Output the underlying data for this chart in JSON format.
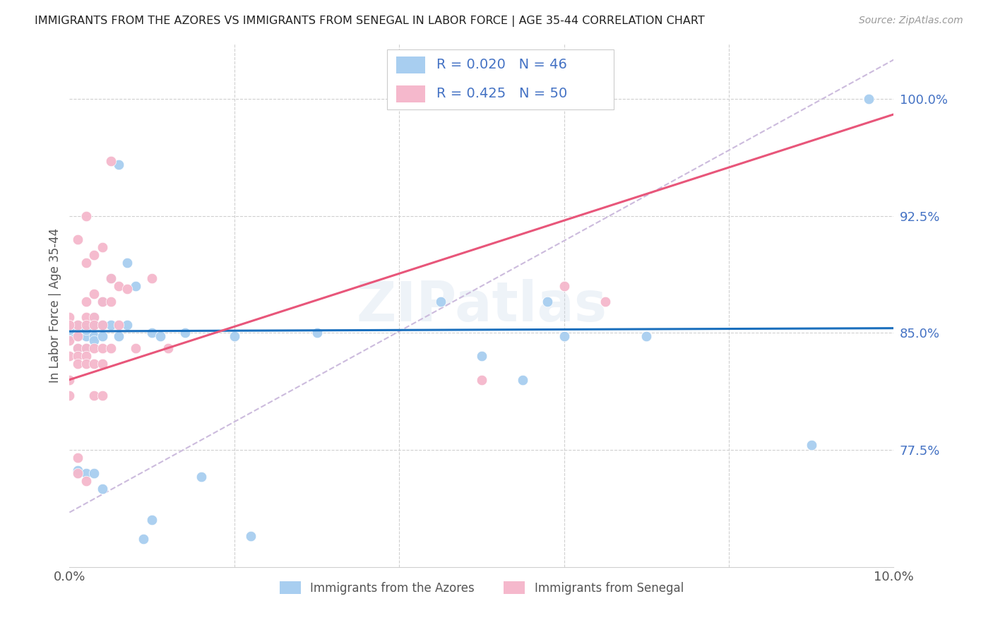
{
  "title": "IMMIGRANTS FROM THE AZORES VS IMMIGRANTS FROM SENEGAL IN LABOR FORCE | AGE 35-44 CORRELATION CHART",
  "source": "Source: ZipAtlas.com",
  "ylabel": "In Labor Force | Age 35-44",
  "xlim": [
    0.0,
    0.1
  ],
  "ylim": [
    0.7,
    1.035
  ],
  "yticks": [
    0.775,
    0.85,
    0.925,
    1.0
  ],
  "ytick_labels": [
    "77.5%",
    "85.0%",
    "92.5%",
    "100.0%"
  ],
  "xticks": [
    0.0,
    0.02,
    0.04,
    0.06,
    0.08,
    0.1
  ],
  "xtick_labels": [
    "0.0%",
    "",
    "",
    "",
    "",
    "10.0%"
  ],
  "azores_color": "#a8cef0",
  "senegal_color": "#f5b8cc",
  "azores_line_color": "#1a6fbd",
  "senegal_line_color": "#e8567a",
  "diagonal_color": "#ccbbdd",
  "watermark": "ZIPatlas",
  "azores_scatter_x": [
    0.001,
    0.001,
    0.001,
    0.001,
    0.001,
    0.002,
    0.002,
    0.002,
    0.002,
    0.003,
    0.003,
    0.003,
    0.003,
    0.004,
    0.004,
    0.004,
    0.005,
    0.005,
    0.006,
    0.006,
    0.007,
    0.007,
    0.008,
    0.009,
    0.01,
    0.01,
    0.011,
    0.014,
    0.016,
    0.02,
    0.022,
    0.03,
    0.045,
    0.05,
    0.055,
    0.058,
    0.06,
    0.07,
    0.09,
    0.097,
    0.0,
    0.0,
    0.001,
    0.002,
    0.003,
    0.004
  ],
  "azores_scatter_y": [
    0.848,
    0.855,
    0.85,
    0.84,
    0.76,
    0.848,
    0.855,
    0.852,
    0.84,
    0.86,
    0.855,
    0.848,
    0.845,
    0.87,
    0.855,
    0.848,
    0.885,
    0.855,
    0.958,
    0.848,
    0.895,
    0.855,
    0.88,
    0.718,
    0.85,
    0.73,
    0.848,
    0.85,
    0.758,
    0.848,
    0.72,
    0.85,
    0.87,
    0.835,
    0.82,
    0.87,
    0.848,
    0.848,
    0.778,
    1.0,
    0.848,
    0.852,
    0.762,
    0.76,
    0.76,
    0.75
  ],
  "senegal_scatter_x": [
    0.0,
    0.0,
    0.0,
    0.0,
    0.0,
    0.001,
    0.001,
    0.001,
    0.001,
    0.001,
    0.001,
    0.002,
    0.002,
    0.002,
    0.002,
    0.002,
    0.002,
    0.002,
    0.003,
    0.003,
    0.003,
    0.003,
    0.004,
    0.004,
    0.004,
    0.005,
    0.005,
    0.006,
    0.007,
    0.008,
    0.01,
    0.012,
    0.05,
    0.06,
    0.065,
    0.0,
    0.0,
    0.001,
    0.001,
    0.002,
    0.002,
    0.003,
    0.003,
    0.003,
    0.004,
    0.004,
    0.004,
    0.005,
    0.005,
    0.006
  ],
  "senegal_scatter_y": [
    0.855,
    0.86,
    0.845,
    0.835,
    0.82,
    0.91,
    0.855,
    0.848,
    0.84,
    0.835,
    0.77,
    0.925,
    0.895,
    0.87,
    0.86,
    0.855,
    0.84,
    0.755,
    0.9,
    0.875,
    0.86,
    0.84,
    0.905,
    0.87,
    0.84,
    0.96,
    0.885,
    0.88,
    0.878,
    0.84,
    0.885,
    0.84,
    0.82,
    0.88,
    0.87,
    0.855,
    0.81,
    0.76,
    0.83,
    0.835,
    0.83,
    0.855,
    0.83,
    0.81,
    0.855,
    0.83,
    0.81,
    0.87,
    0.84,
    0.855
  ],
  "azores_line": {
    "x0": 0.0,
    "y0": 0.851,
    "x1": 0.1,
    "y1": 0.853
  },
  "senegal_line": {
    "x0": 0.0,
    "y0": 0.82,
    "x1": 0.1,
    "y1": 0.99
  },
  "diag_line": {
    "x0": 0.0,
    "y0": 0.735,
    "x1": 0.1,
    "y1": 1.025
  }
}
